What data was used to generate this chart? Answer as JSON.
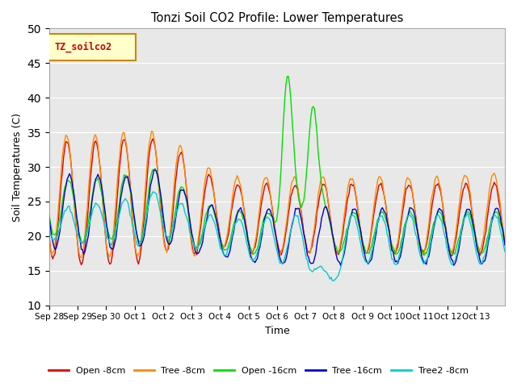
{
  "title": "Tonzi Soil CO2 Profile: Lower Temperatures",
  "xlabel": "Time",
  "ylabel": "Soil Temperatures (C)",
  "ylim": [
    10,
    50
  ],
  "yticks": [
    10,
    15,
    20,
    25,
    30,
    35,
    40,
    45,
    50
  ],
  "legend_label": "TZ_soilco2",
  "series_colors": {
    "Open -8cm": "#dd0000",
    "Tree -8cm": "#ff8800",
    "Open -16cm": "#00dd00",
    "Tree -16cm": "#0000cc",
    "Tree2 -8cm": "#00cccc"
  },
  "tick_labels": [
    "Sep 28",
    "Sep 29",
    "Sep 30",
    "Oct 1",
    "Oct 2",
    "Oct 3",
    "Oct 4",
    "Oct 5",
    "Oct 6",
    "Oct 7",
    "Oct 8",
    "Oct 9",
    "Oct 10",
    "Oct 11",
    "Oct 12",
    "Oct 13"
  ],
  "bg_color": "#e8e8e8"
}
